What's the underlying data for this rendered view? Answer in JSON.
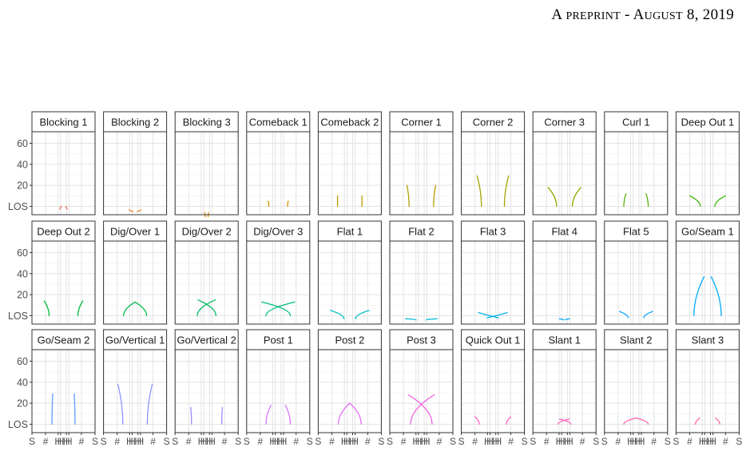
{
  "header": "A PREPRINT - AUGUST 8, 2019",
  "chart_data": {
    "type": "line",
    "facets": [
      {
        "title": "Blocking 1",
        "color": "#F8766D",
        "paths": [
          [
            [
              -5.0,
              -3.0
            ],
            [
              -3.0,
              0.0
            ]
          ],
          [
            [
              5.0,
              -3.0
            ],
            [
              3.0,
              0.0
            ]
          ]
        ]
      },
      {
        "title": "Blocking 2",
        "color": "#E7861B",
        "paths": [
          [
            [
              -8.0,
              -3.0
            ],
            [
              -3.0,
              -5.0
            ]
          ],
          [
            [
              8.0,
              -3.0
            ],
            [
              3.0,
              -5.0
            ]
          ]
        ]
      },
      {
        "title": "Blocking 3",
        "color": "#DB8E00",
        "paths": [
          [
            [
              -2.5,
              -6.0
            ],
            [
              -2.0,
              -10.0
            ]
          ],
          [
            [
              2.5,
              -6.0
            ],
            [
              2.0,
              -10.0
            ]
          ]
        ]
      },
      {
        "title": "Comeback 1",
        "color": "#D39200",
        "paths": [
          [
            [
              -13.0,
              0.0
            ],
            [
              -14.0,
              5.0
            ]
          ],
          [
            [
              13.0,
              0.0
            ],
            [
              14.0,
              5.0
            ]
          ]
        ]
      },
      {
        "title": "Comeback 2",
        "color": "#C49A00",
        "paths": [
          [
            [
              -17.0,
              0.0
            ],
            [
              -17.0,
              10.0
            ]
          ],
          [
            [
              17.0,
              0.0
            ],
            [
              17.0,
              10.0
            ]
          ]
        ]
      },
      {
        "title": "Corner 1",
        "color": "#B49F00",
        "paths": [
          [
            [
              -17.0,
              0.0
            ],
            [
              -20.0,
              20.0
            ]
          ],
          [
            [
              17.0,
              0.0
            ],
            [
              20.0,
              20.0
            ]
          ]
        ]
      },
      {
        "title": "Corner 2",
        "color": "#A3A500",
        "paths": [
          [
            [
              -16.0,
              0.0
            ],
            [
              -22.0,
              29.0
            ]
          ],
          [
            [
              16.0,
              0.0
            ],
            [
              22.0,
              29.0
            ]
          ]
        ]
      },
      {
        "title": "Corner 3",
        "color": "#8FAA00",
        "paths": [
          [
            [
              -11.0,
              0.0
            ],
            [
              -23.0,
              18.0
            ]
          ],
          [
            [
              11.0,
              0.0
            ],
            [
              23.0,
              18.0
            ]
          ]
        ]
      },
      {
        "title": "Curl 1",
        "color": "#53B400",
        "paths": [
          [
            [
              -17.0,
              0.0
            ],
            [
              -14.0,
              12.0
            ]
          ],
          [
            [
              17.0,
              0.0
            ],
            [
              14.0,
              12.0
            ]
          ]
        ]
      },
      {
        "title": "Deep Out 1",
        "color": "#39B600",
        "paths": [
          [
            [
              -10.0,
              0.0
            ],
            [
              -25.0,
              10.0
            ]
          ],
          [
            [
              10.0,
              0.0
            ],
            [
              25.0,
              10.0
            ]
          ]
        ]
      },
      {
        "title": "Deep Out 2",
        "color": "#00BA38",
        "paths": [
          [
            [
              -20.0,
              0.0
            ],
            [
              -27.0,
              14.0
            ]
          ],
          [
            [
              20.0,
              0.0
            ],
            [
              27.0,
              14.0
            ]
          ]
        ]
      },
      {
        "title": "Dig/Over 1",
        "color": "#00BB4E",
        "paths": [
          [
            [
              -16.0,
              0.0
            ],
            [
              0.0,
              13.0
            ]
          ],
          [
            [
              16.0,
              0.0
            ],
            [
              0.0,
              13.0
            ]
          ]
        ]
      },
      {
        "title": "Dig/Over 2",
        "color": "#00BD5F",
        "paths": [
          [
            [
              -13.0,
              0.0
            ],
            [
              12.0,
              15.0
            ]
          ],
          [
            [
              13.0,
              0.0
            ],
            [
              -12.0,
              15.0
            ]
          ]
        ]
      },
      {
        "title": "Dig/Over 3",
        "color": "#00BF7D",
        "paths": [
          [
            [
              -17.0,
              0.0
            ],
            [
              23.0,
              13.0
            ]
          ],
          [
            [
              17.0,
              0.0
            ],
            [
              -23.0,
              13.0
            ]
          ]
        ]
      },
      {
        "title": "Flat 1",
        "color": "#00BFC4",
        "paths": [
          [
            [
              -8.0,
              -3.0
            ],
            [
              -27.0,
              5.0
            ]
          ],
          [
            [
              8.0,
              -3.0
            ],
            [
              27.0,
              5.0
            ]
          ]
        ]
      },
      {
        "title": "Flat 2",
        "color": "#00BCD8",
        "paths": [
          [
            [
              -7.0,
              -4.0
            ],
            [
              -22.0,
              -3.0
            ]
          ],
          [
            [
              7.0,
              -4.0
            ],
            [
              22.0,
              -3.0
            ]
          ]
        ]
      },
      {
        "title": "Flat 3",
        "color": "#00B5EE",
        "paths": [
          [
            [
              -8.0,
              -2.0
            ],
            [
              10.0,
              1.0
            ],
            [
              20.0,
              3.0
            ]
          ],
          [
            [
              8.0,
              -2.0
            ],
            [
              -10.0,
              1.0
            ],
            [
              -20.0,
              3.0
            ]
          ]
        ]
      },
      {
        "title": "Flat 4",
        "color": "#00ADFA",
        "paths": [
          [
            [
              -1.0,
              -4.0
            ],
            [
              -7.0,
              -3.0
            ]
          ],
          [
            [
              1.0,
              -4.0
            ],
            [
              7.0,
              -3.0
            ]
          ]
        ]
      },
      {
        "title": "Flat 5",
        "color": "#00A5FF",
        "paths": [
          [
            [
              -11.0,
              -2.0
            ],
            [
              -23.0,
              4.0
            ]
          ],
          [
            [
              11.0,
              -2.0
            ],
            [
              23.0,
              4.0
            ]
          ]
        ]
      },
      {
        "title": "Go/Seam 1",
        "color": "#00A9FF",
        "paths": [
          [
            [
              -19.0,
              0.0
            ],
            [
              -5.0,
              37.0
            ]
          ],
          [
            [
              19.0,
              0.0
            ],
            [
              5.0,
              37.0
            ]
          ]
        ]
      },
      {
        "title": "Go/Seam 2",
        "color": "#619CFF",
        "paths": [
          [
            [
              -16.0,
              0.0
            ],
            [
              -15.0,
              29.0
            ]
          ],
          [
            [
              16.0,
              0.0
            ],
            [
              15.0,
              29.0
            ]
          ]
        ]
      },
      {
        "title": "Go/Vertical 1",
        "color": "#8B93FF",
        "paths": [
          [
            [
              -17.0,
              0.0
            ],
            [
              -24.0,
              38.0
            ]
          ],
          [
            [
              17.0,
              0.0
            ],
            [
              24.0,
              38.0
            ]
          ]
        ]
      },
      {
        "title": "Go/Vertical 2",
        "color": "#9F8CFF",
        "paths": [
          [
            [
              -21.0,
              0.0
            ],
            [
              -22.0,
              16.0
            ]
          ],
          [
            [
              21.0,
              0.0
            ],
            [
              22.0,
              16.0
            ]
          ]
        ]
      },
      {
        "title": "Post 1",
        "color": "#DB72FB",
        "paths": [
          [
            [
              -17.0,
              0.0
            ],
            [
              -10.0,
              18.0
            ]
          ],
          [
            [
              17.0,
              0.0
            ],
            [
              10.0,
              18.0
            ]
          ]
        ]
      },
      {
        "title": "Post 2",
        "color": "#E36EF6",
        "paths": [
          [
            [
              -16.0,
              0.0
            ],
            [
              0.0,
              20.0
            ]
          ],
          [
            [
              16.0,
              0.0
            ],
            [
              0.0,
              20.0
            ]
          ]
        ]
      },
      {
        "title": "Post 3",
        "color": "#F064E4",
        "paths": [
          [
            [
              -15.0,
              0.0
            ],
            [
              18.0,
              28.0
            ]
          ],
          [
            [
              15.0,
              0.0
            ],
            [
              -18.0,
              28.0
            ]
          ]
        ]
      },
      {
        "title": "Quick Out 1",
        "color": "#FF61C3",
        "paths": [
          [
            [
              -19.0,
              0.0
            ],
            [
              -25.0,
              7.0
            ]
          ],
          [
            [
              19.0,
              0.0
            ],
            [
              25.0,
              7.0
            ]
          ]
        ]
      },
      {
        "title": "Slant 1",
        "color": "#FF62BC",
        "paths": [
          [
            [
              -9.0,
              0.0
            ],
            [
              7.0,
              5.0
            ]
          ],
          [
            [
              9.0,
              0.0
            ],
            [
              -7.0,
              5.0
            ]
          ]
        ]
      },
      {
        "title": "Slant 2",
        "color": "#FF64AE",
        "paths": [
          [
            [
              -17.0,
              0.0
            ],
            [
              0.0,
              6.0
            ]
          ],
          [
            [
              17.0,
              0.0
            ],
            [
              0.0,
              6.0
            ]
          ]
        ]
      },
      {
        "title": "Slant 3",
        "color": "#FF689F",
        "paths": [
          [
            [
              -17.0,
              0.0
            ],
            [
              -11.0,
              6.0
            ]
          ],
          [
            [
              17.0,
              0.0
            ],
            [
              11.0,
              6.0
            ]
          ]
        ]
      }
    ],
    "xlim": [
      -44,
      44
    ],
    "ylim": [
      -8,
      71
    ],
    "yticks": [
      0,
      20,
      40,
      60
    ],
    "ytick_labels": [
      "LOS",
      "20",
      "40",
      "60"
    ],
    "yminor": [
      10,
      30,
      50,
      70
    ],
    "xticks": [
      -44,
      -25,
      -7.5,
      -4,
      4,
      7.5,
      25,
      44
    ],
    "xtick_labels": [
      "S",
      "#",
      "H",
      "H",
      "H",
      "H",
      "#",
      "S"
    ],
    "grid": true
  }
}
